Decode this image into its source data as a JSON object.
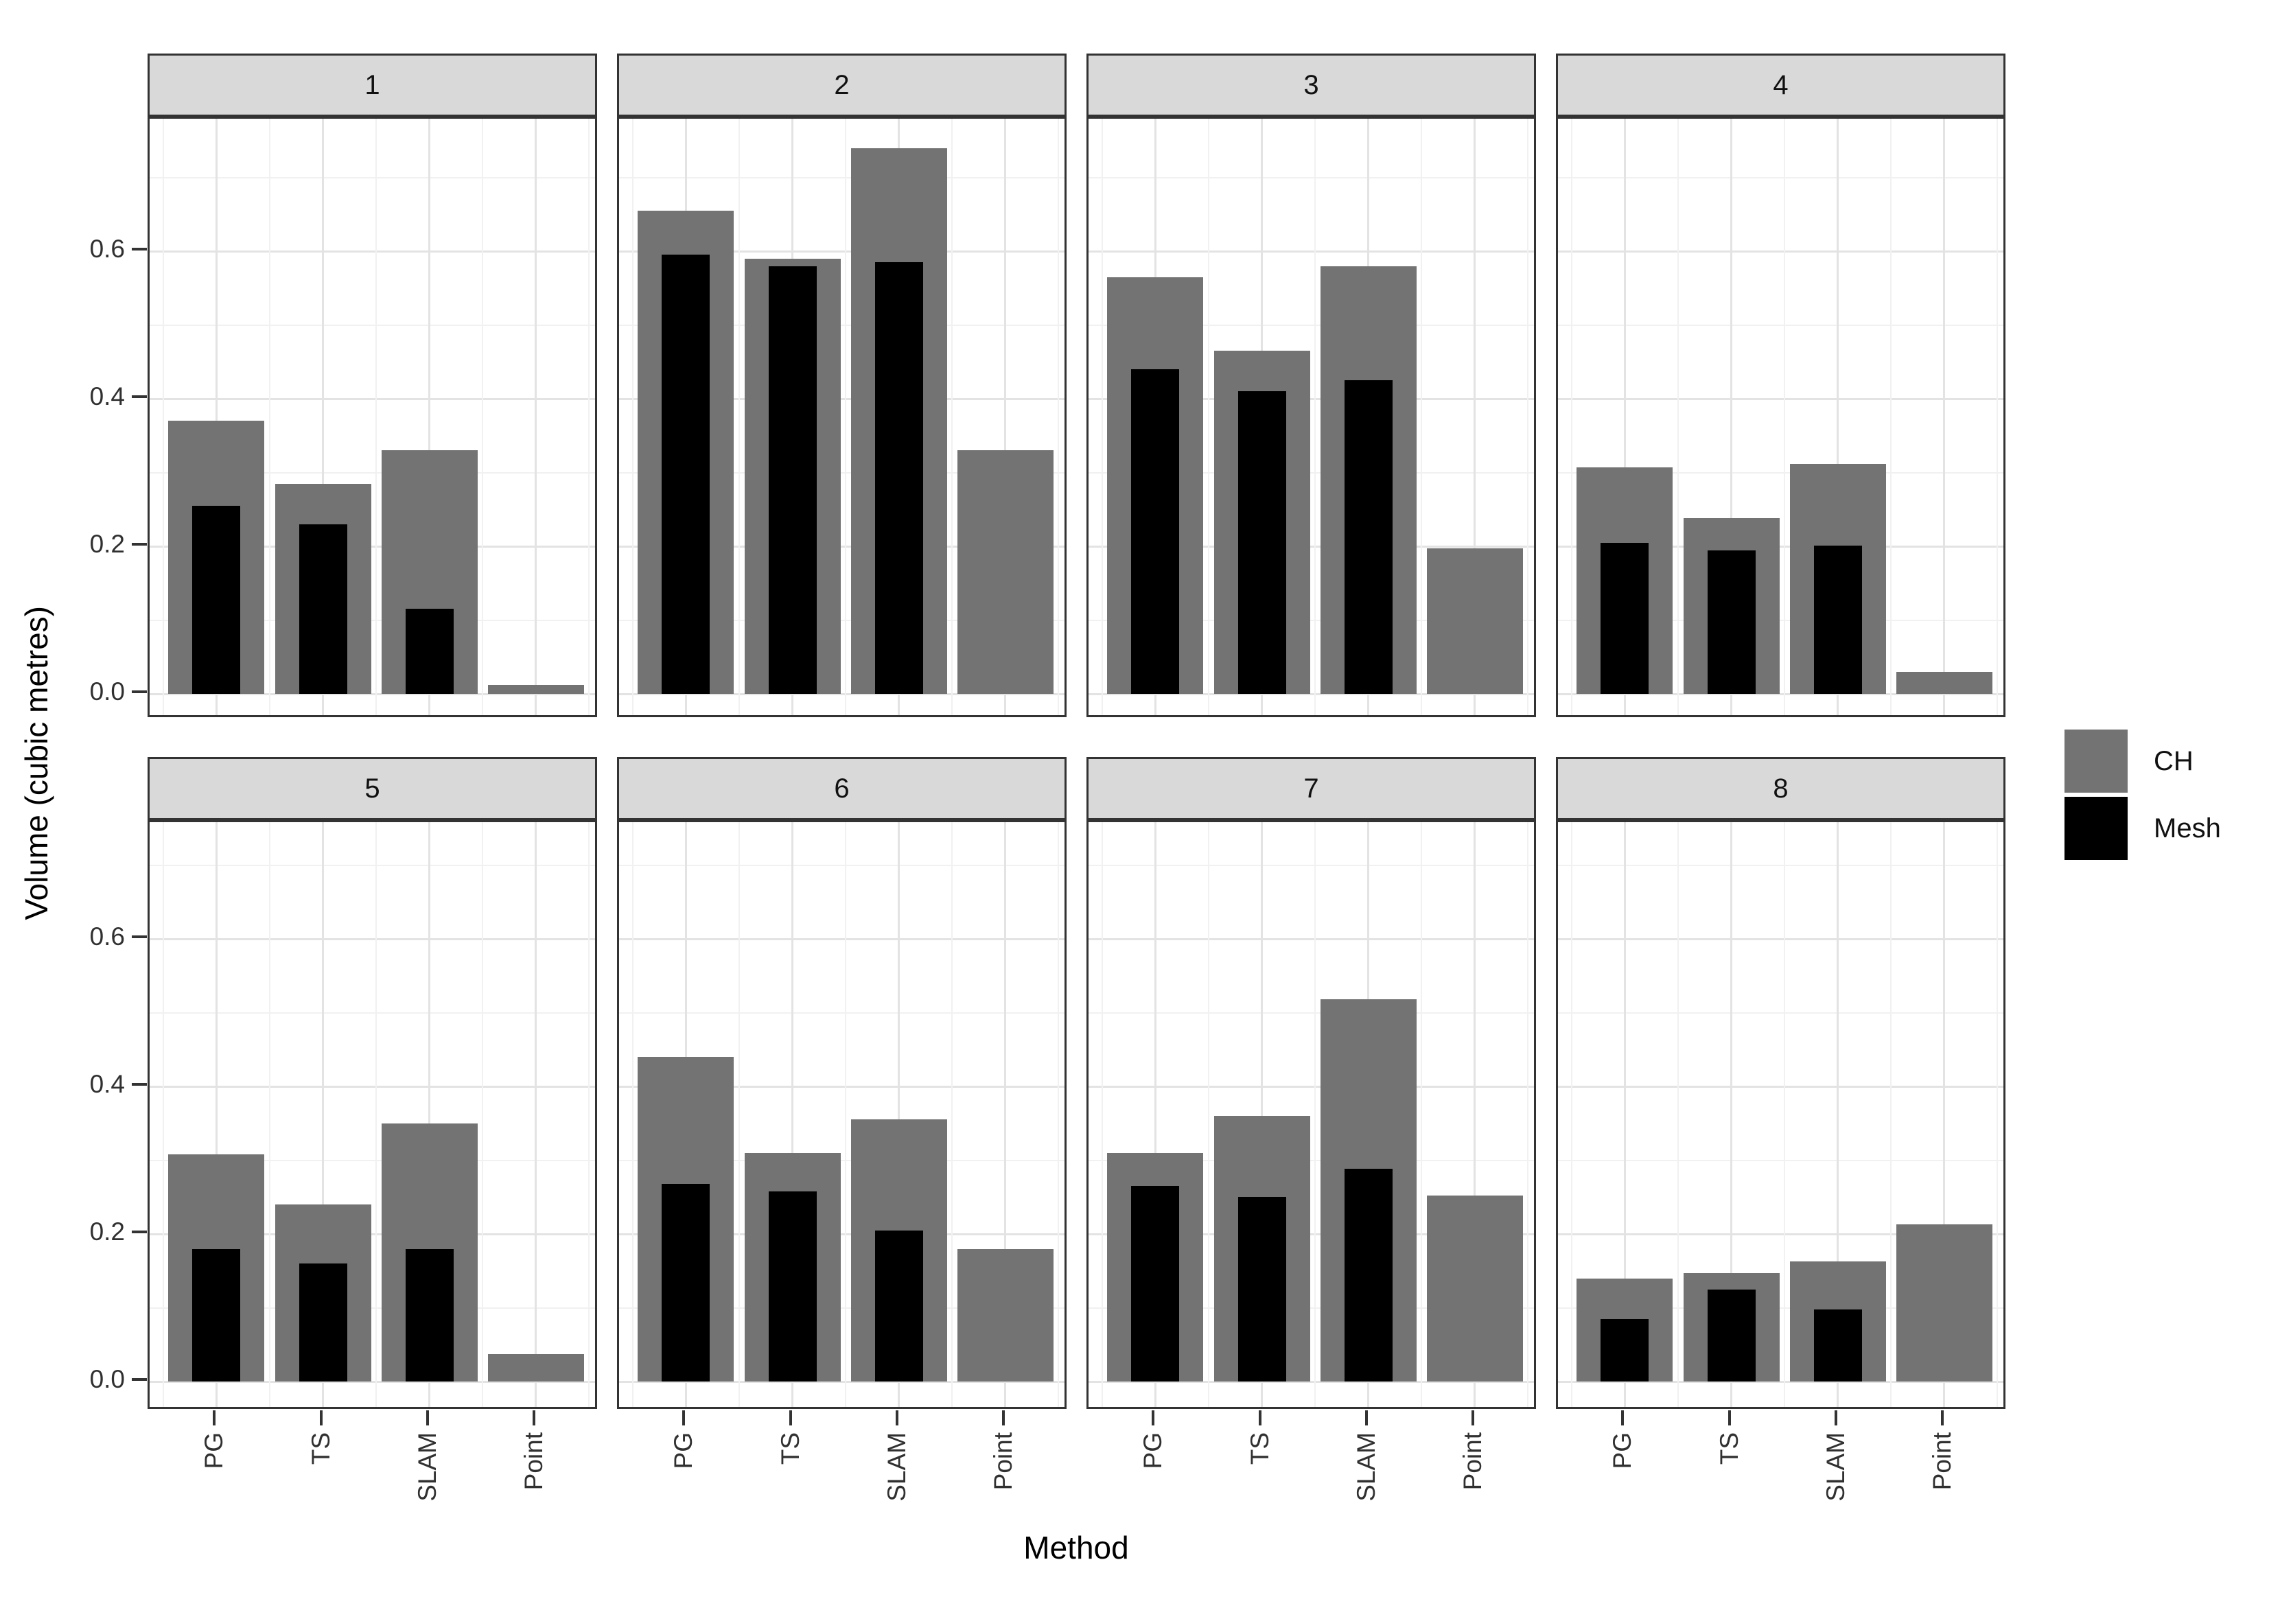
{
  "chart_data": {
    "type": "bar",
    "title": "",
    "xlabel": "Method",
    "ylabel": "Volume (cubic metres)",
    "categories": [
      "PG",
      "TS",
      "SLAM",
      "Point"
    ],
    "yticks": [
      0,
      0.2,
      0.4,
      0.6
    ],
    "ytick_labels": [
      "0.0",
      "0.2",
      "0.4",
      "0.6"
    ],
    "ylim": [
      0,
      0.78
    ],
    "grid": "on",
    "legend_position": "right",
    "bar_style": "overlay (Mesh drawn on top of CH)",
    "series": [
      {
        "name": "CH",
        "color": "#737373"
      },
      {
        "name": "Mesh",
        "color": "#000000"
      }
    ],
    "facets": [
      {
        "label": "1",
        "CH": [
          0.37,
          0.285,
          0.33,
          0.012
        ],
        "Mesh": [
          0.255,
          0.23,
          0.115,
          null
        ]
      },
      {
        "label": "2",
        "CH": [
          0.655,
          0.59,
          0.74,
          0.33
        ],
        "Mesh": [
          0.595,
          0.58,
          0.585,
          null
        ]
      },
      {
        "label": "3",
        "CH": [
          0.565,
          0.465,
          0.58,
          0.197
        ],
        "Mesh": [
          0.44,
          0.41,
          0.425,
          null
        ]
      },
      {
        "label": "4",
        "CH": [
          0.307,
          0.238,
          0.312,
          0.03
        ],
        "Mesh": [
          0.205,
          0.194,
          0.201,
          null
        ]
      },
      {
        "label": "5",
        "CH": [
          0.308,
          0.24,
          0.35,
          0.037
        ],
        "Mesh": [
          0.18,
          0.16,
          0.18,
          null
        ]
      },
      {
        "label": "6",
        "CH": [
          0.44,
          0.31,
          0.355,
          0.18
        ],
        "Mesh": [
          0.268,
          0.258,
          0.205,
          null
        ]
      },
      {
        "label": "7",
        "CH": [
          0.31,
          0.36,
          0.518,
          0.252
        ],
        "Mesh": [
          0.265,
          0.25,
          0.288,
          null
        ]
      },
      {
        "label": "8",
        "CH": [
          0.14,
          0.147,
          0.163,
          0.213
        ],
        "Mesh": [
          0.085,
          0.125,
          0.098,
          null
        ]
      }
    ]
  }
}
